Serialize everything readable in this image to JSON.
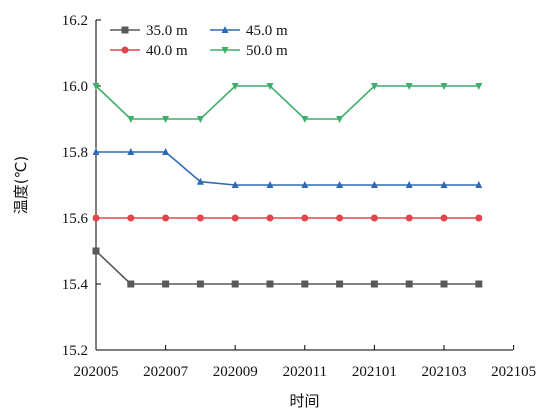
{
  "chart_data": {
    "type": "line",
    "xlabel": "时间",
    "ylabel": "温度(℃)",
    "categories": [
      "202005",
      "202006",
      "202007",
      "202008",
      "202009",
      "202010",
      "202011",
      "202012",
      "202101",
      "202102",
      "202103",
      "202104"
    ],
    "x_ticks": [
      "202005",
      "202007",
      "202009",
      "202011",
      "202101",
      "202103",
      "202105"
    ],
    "ylim": [
      15.2,
      16.2
    ],
    "y_ticks": [
      "15.2",
      "15.4",
      "15.6",
      "15.8",
      "16.0",
      "16.2"
    ],
    "grid": false,
    "legend_position": "top-left",
    "series": [
      {
        "name": "35.0 m",
        "color": "#595959",
        "marker": "square",
        "values": [
          15.5,
          15.4,
          15.4,
          15.4,
          15.4,
          15.4,
          15.4,
          15.4,
          15.4,
          15.4,
          15.4,
          15.4
        ]
      },
      {
        "name": "45.0 m",
        "color": "#2e6ab4",
        "marker": "triangle-up",
        "values": [
          15.8,
          15.8,
          15.8,
          15.71,
          15.7,
          15.7,
          15.7,
          15.7,
          15.7,
          15.7,
          15.7,
          15.7
        ]
      },
      {
        "name": "40.0 m",
        "color": "#e0474c",
        "marker": "circle",
        "values": [
          15.6,
          15.6,
          15.6,
          15.6,
          15.6,
          15.6,
          15.6,
          15.6,
          15.6,
          15.6,
          15.6,
          15.6
        ]
      },
      {
        "name": "50.0 m",
        "color": "#3fae6a",
        "marker": "triangle-down",
        "values": [
          16.0,
          15.9,
          15.9,
          15.9,
          16.0,
          16.0,
          15.9,
          15.9,
          16.0,
          16.0,
          16.0,
          16.0
        ]
      }
    ]
  }
}
